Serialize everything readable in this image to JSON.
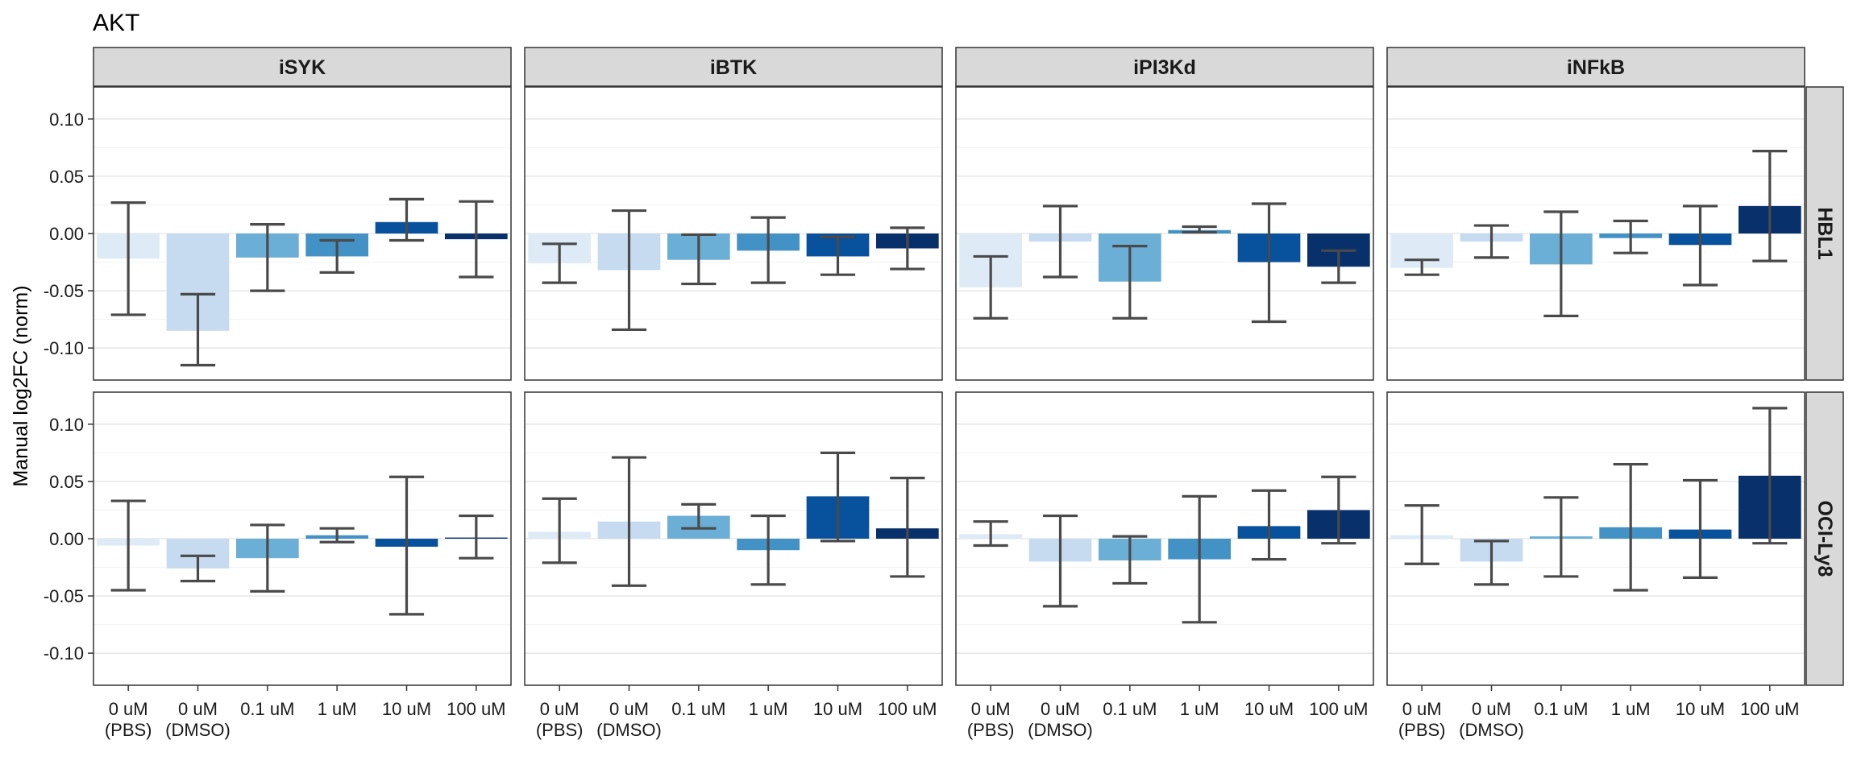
{
  "title": "AKT",
  "chart_data": {
    "type": "bar",
    "title": "AKT",
    "ylabel": "Manual log2FC (norm)",
    "xlabel": "",
    "ylim": [
      -0.128,
      0.128
    ],
    "yticks": [
      -0.1,
      -0.05,
      0.0,
      0.05,
      0.1
    ],
    "ytick_labels": [
      "-0.10",
      "-0.05",
      "0.00",
      "0.05",
      "0.10"
    ],
    "grid": true,
    "facet_columns": [
      "iSYK",
      "iBTK",
      "iPI3Kd",
      "iNFkB"
    ],
    "facet_rows": [
      "HBL1",
      "OCI-Ly8"
    ],
    "categories": [
      [
        "0 uM",
        "(PBS)"
      ],
      [
        "0 uM",
        "(DMSO)"
      ],
      [
        "0.1 uM"
      ],
      [
        "1 uM"
      ],
      [
        "10 uM"
      ],
      [
        "100 uM"
      ]
    ],
    "colors": [
      "#deebf7",
      "#c6dbef",
      "#6baed6",
      "#4292c6",
      "#08519c",
      "#08306b"
    ],
    "panels": [
      {
        "row": "HBL1",
        "col": "iSYK",
        "values": [
          -0.022,
          -0.085,
          -0.021,
          -0.02,
          0.01,
          -0.005
        ],
        "error_low": [
          -0.071,
          -0.115,
          -0.05,
          -0.034,
          -0.006,
          -0.038
        ],
        "error_high": [
          0.027,
          -0.053,
          0.008,
          -0.006,
          0.03,
          0.028
        ]
      },
      {
        "row": "HBL1",
        "col": "iBTK",
        "values": [
          -0.026,
          -0.032,
          -0.023,
          -0.015,
          -0.02,
          -0.013
        ],
        "error_low": [
          -0.043,
          -0.084,
          -0.044,
          -0.043,
          -0.036,
          -0.031
        ],
        "error_high": [
          -0.009,
          0.02,
          -0.001,
          0.014,
          -0.003,
          0.005
        ]
      },
      {
        "row": "HBL1",
        "col": "iPI3Kd",
        "values": [
          -0.047,
          -0.007,
          -0.042,
          0.003,
          -0.025,
          -0.029
        ],
        "error_low": [
          -0.074,
          -0.038,
          -0.074,
          0.001,
          -0.077,
          -0.043
        ],
        "error_high": [
          -0.02,
          0.024,
          -0.011,
          0.006,
          0.026,
          -0.015
        ]
      },
      {
        "row": "HBL1",
        "col": "iNFkB",
        "values": [
          -0.03,
          -0.007,
          -0.027,
          -0.004,
          -0.01,
          0.024
        ],
        "error_low": [
          -0.036,
          -0.021,
          -0.072,
          -0.017,
          -0.045,
          -0.024
        ],
        "error_high": [
          -0.023,
          0.007,
          0.019,
          0.011,
          0.024,
          0.072
        ]
      },
      {
        "row": "OCI-Ly8",
        "col": "iSYK",
        "values": [
          -0.006,
          -0.026,
          -0.017,
          0.003,
          -0.007,
          0.001
        ],
        "error_low": [
          -0.045,
          -0.037,
          -0.046,
          -0.003,
          -0.066,
          -0.017
        ],
        "error_high": [
          0.033,
          -0.015,
          0.012,
          0.009,
          0.054,
          0.02
        ]
      },
      {
        "row": "OCI-Ly8",
        "col": "iBTK",
        "values": [
          0.006,
          0.015,
          0.02,
          -0.01,
          0.037,
          0.009
        ],
        "error_low": [
          -0.021,
          -0.041,
          0.009,
          -0.04,
          -0.002,
          -0.033
        ],
        "error_high": [
          0.035,
          0.071,
          0.03,
          0.02,
          0.075,
          0.053
        ]
      },
      {
        "row": "OCI-Ly8",
        "col": "iPI3Kd",
        "values": [
          0.004,
          -0.02,
          -0.019,
          -0.018,
          0.011,
          0.025
        ],
        "error_low": [
          -0.006,
          -0.059,
          -0.039,
          -0.073,
          -0.018,
          -0.004
        ],
        "error_high": [
          0.015,
          0.02,
          0.002,
          0.037,
          0.042,
          0.054
        ]
      },
      {
        "row": "OCI-Ly8",
        "col": "iNFkB",
        "values": [
          0.003,
          -0.02,
          0.002,
          0.01,
          0.008,
          0.055
        ],
        "error_low": [
          -0.022,
          -0.04,
          -0.033,
          -0.045,
          -0.034,
          -0.004
        ],
        "error_high": [
          0.029,
          -0.002,
          0.036,
          0.065,
          0.051,
          0.114
        ]
      }
    ]
  }
}
